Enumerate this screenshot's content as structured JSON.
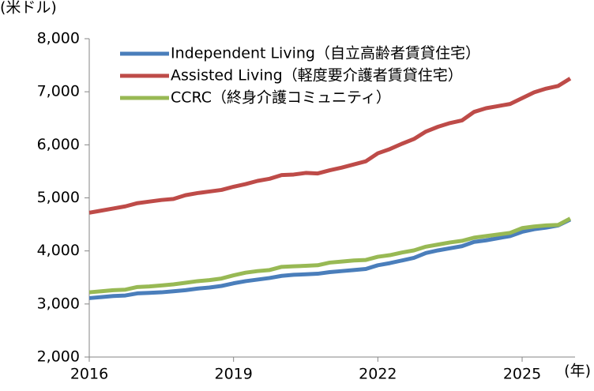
{
  "chart_data": {
    "type": "line",
    "y_unit": "(米ドル)",
    "x_unit": "(年)",
    "x": [
      2016,
      2016.25,
      2016.5,
      2016.75,
      2017,
      2017.25,
      2017.5,
      2017.75,
      2018,
      2018.25,
      2018.5,
      2018.75,
      2019,
      2019.25,
      2019.5,
      2019.75,
      2020,
      2020.25,
      2020.5,
      2020.75,
      2021,
      2021.25,
      2021.5,
      2021.75,
      2022,
      2022.25,
      2022.5,
      2022.75,
      2023,
      2023.25,
      2023.5,
      2023.75,
      2024,
      2024.25,
      2024.5,
      2024.75,
      2025,
      2025.25,
      2025.5,
      2025.75,
      2026
    ],
    "series": [
      {
        "name": "Independent Living（自立高齢者賃貸住宅）",
        "color": "#4a7ebb",
        "values": [
          3110,
          3130,
          3150,
          3160,
          3200,
          3210,
          3220,
          3240,
          3260,
          3290,
          3310,
          3340,
          3390,
          3430,
          3460,
          3490,
          3530,
          3550,
          3560,
          3570,
          3600,
          3620,
          3640,
          3660,
          3730,
          3770,
          3820,
          3870,
          3960,
          4010,
          4050,
          4090,
          4170,
          4200,
          4240,
          4280,
          4360,
          4410,
          4440,
          4480,
          4590
        ]
      },
      {
        "name": "Assisted Living（軽度要介護者賃貸住宅）",
        "color": "#be4b48",
        "values": [
          4720,
          4760,
          4800,
          4840,
          4900,
          4930,
          4960,
          4980,
          5050,
          5090,
          5120,
          5150,
          5210,
          5260,
          5320,
          5360,
          5430,
          5440,
          5470,
          5460,
          5520,
          5570,
          5630,
          5690,
          5840,
          5920,
          6020,
          6110,
          6250,
          6340,
          6410,
          6460,
          6620,
          6690,
          6730,
          6770,
          6880,
          6990,
          7060,
          7110,
          7250
        ]
      },
      {
        "name": "CCRC（終身介護コミュニティ）",
        "color": "#98b954",
        "values": [
          3220,
          3240,
          3260,
          3270,
          3320,
          3330,
          3350,
          3370,
          3400,
          3430,
          3450,
          3480,
          3540,
          3590,
          3620,
          3640,
          3700,
          3710,
          3720,
          3730,
          3780,
          3800,
          3820,
          3830,
          3890,
          3920,
          3970,
          4010,
          4080,
          4120,
          4160,
          4190,
          4250,
          4280,
          4310,
          4340,
          4430,
          4460,
          4480,
          4490,
          4610
        ]
      }
    ],
    "xlim": [
      2016,
      2026.1
    ],
    "xticks": [
      2016,
      2019,
      2022,
      2025
    ],
    "ylim": [
      2000,
      8000
    ],
    "yticks": [
      {
        "value": 2000,
        "label": "2,000"
      },
      {
        "value": 3000,
        "label": "3,000"
      },
      {
        "value": 4000,
        "label": "4,000"
      },
      {
        "value": 5000,
        "label": "5,000"
      },
      {
        "value": 6000,
        "label": "6,000"
      },
      {
        "value": 7000,
        "label": "7,000"
      },
      {
        "value": 8000,
        "label": "8,000"
      }
    ],
    "legend": "upper left"
  }
}
